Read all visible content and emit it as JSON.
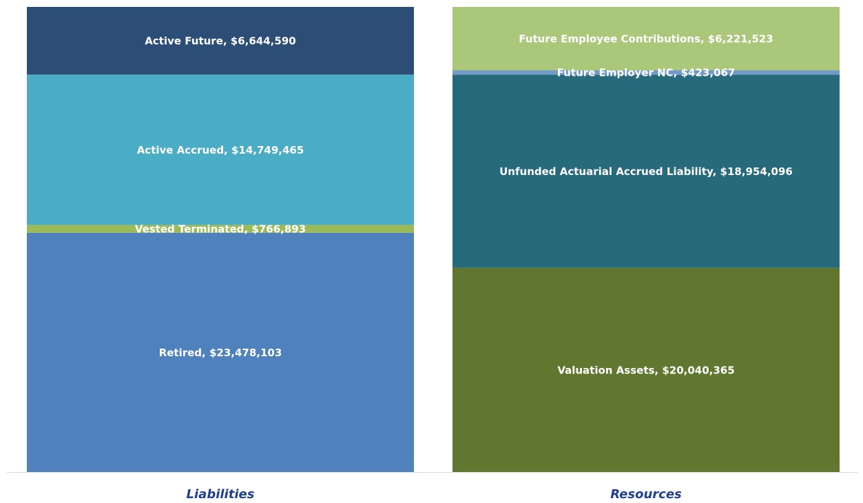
{
  "chart_data": {
    "type": "stacked_bar",
    "categories": [
      "Liabilities",
      "Resources"
    ],
    "ylim": [
      0,
      45639051
    ],
    "series": [
      {
        "color": "#4f81bd",
        "values": [
          23478103,
          null
        ],
        "value_labels": [
          "Retired, $23,478,103",
          null
        ]
      },
      {
        "color": "#9bbb59",
        "values": [
          766893,
          null
        ],
        "value_labels": [
          "Vested Terminated, $766,893",
          null
        ]
      },
      {
        "color": "#4bacc6",
        "values": [
          14749465,
          null
        ],
        "value_labels": [
          "Active Accrued, $14,749,465",
          null
        ]
      },
      {
        "color": "#2c4d75",
        "values": [
          6644590,
          null
        ],
        "value_labels": [
          "Active Future, $6,644,590",
          null
        ]
      },
      {
        "color": "#617730",
        "values": [
          null,
          20040365
        ],
        "value_labels": [
          null,
          "Valuation Assets, $20,040,365"
        ]
      },
      {
        "color": "#276a7c",
        "values": [
          null,
          18954096
        ],
        "value_labels": [
          null,
          "Unfunded Actuarial Accrued Liability, $18,954,096"
        ]
      },
      {
        "color": "#729aca",
        "values": [
          null,
          423067
        ],
        "value_labels": [
          null,
          "Future Employer NC, $423,067"
        ]
      },
      {
        "color": "#aac77a",
        "values": [
          null,
          6221523
        ],
        "value_labels": [
          null,
          "Future Employee Contributions, $6,221,523"
        ]
      }
    ]
  }
}
